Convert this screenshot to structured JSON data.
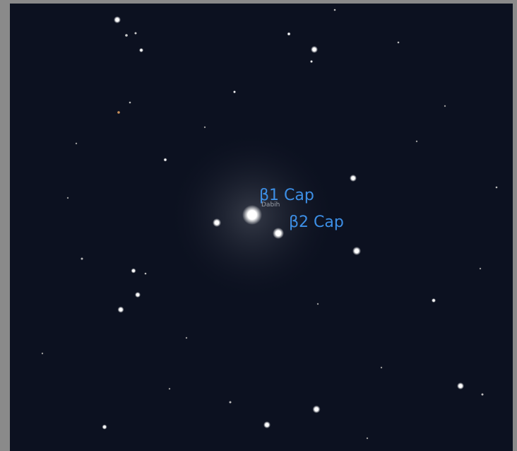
{
  "labels": {
    "beta1": "β1 Cap",
    "proper_name": "Dabih",
    "beta2": "β2 Cap"
  }
}
